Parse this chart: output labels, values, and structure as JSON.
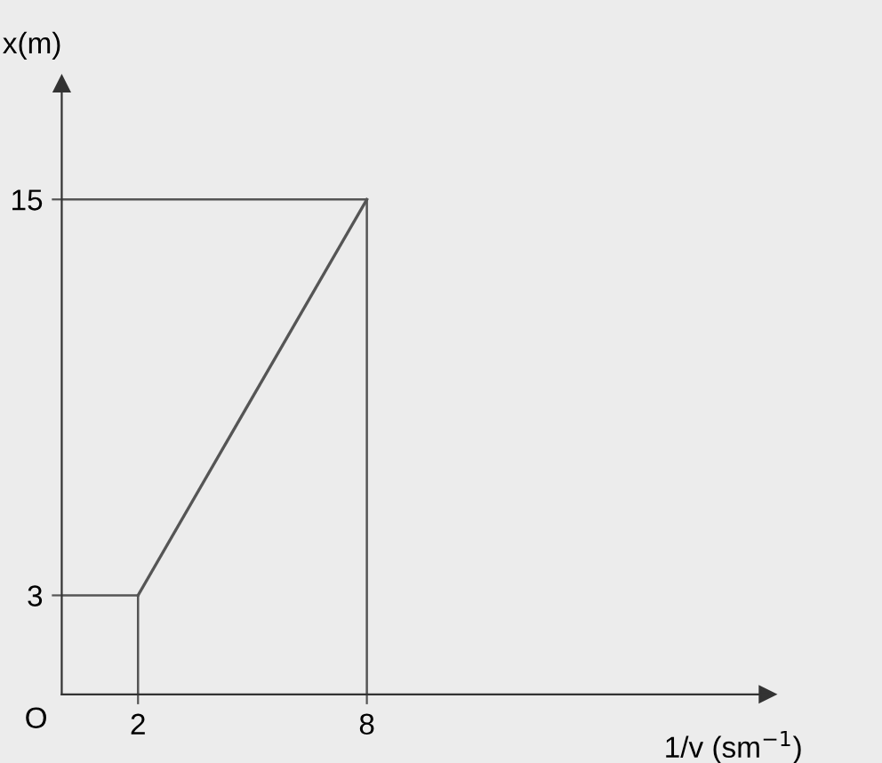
{
  "chart_data": {
    "type": "line",
    "xlabel": "1/v (sm$^{−1}$)",
    "ylabel": "x(m)",
    "x": [
      2,
      8
    ],
    "series": [
      {
        "color": "#555555",
        "values": [
          3,
          15
        ]
      }
    ],
    "xlim": [
      0,
      18.5
    ],
    "ylim": [
      0,
      18.5
    ],
    "xticks": [
      2,
      8
    ],
    "yticks": [
      3,
      15
    ],
    "ref_lines": [
      {
        "axis": "x",
        "value": 2,
        "color": "#555555"
      },
      {
        "axis": "x",
        "value": 8,
        "color": "#555555"
      },
      {
        "axis": "y",
        "value": 3,
        "color": "#555555"
      },
      {
        "axis": "y",
        "value": 15,
        "color": "#555555"
      }
    ],
    "annotations": [
      "O"
    ],
    "grid": false,
    "legend": false,
    "marker": "none",
    "line_style": "solid"
  }
}
